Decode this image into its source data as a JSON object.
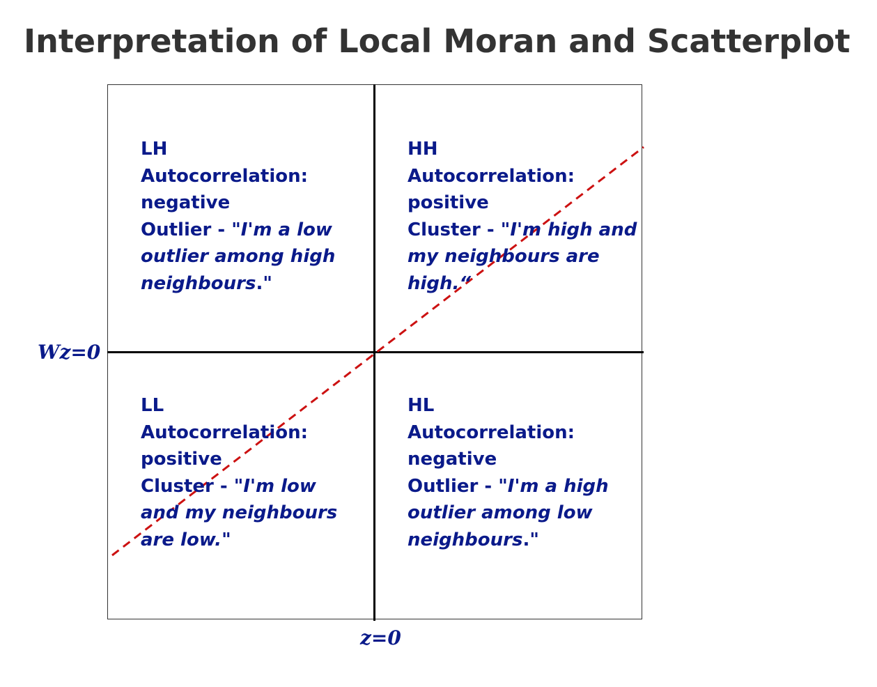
{
  "title": "Interpretation of Local Moran and Scatterplot",
  "axes": {
    "x_label": "z=0",
    "y_label": "Wz=0"
  },
  "quadrants": {
    "lh": {
      "code": "LH",
      "line1": "Autocorrelation:",
      "line2": "negative",
      "kind": "Outlier - \"",
      "q1": "I'm a low",
      "q2": "outlier among high",
      "q3": "neighbours",
      "end": "."
    },
    "hh": {
      "code": "HH",
      "line1": "Autocorrelation:",
      "line2": "positive",
      "kind": "Cluster - \"",
      "q1": "I'm high and",
      "q2": "my neighbours are",
      "q3": "high.“",
      "end": ""
    },
    "ll": {
      "code": "LL",
      "line1": "Autocorrelation:",
      "line2": "positive",
      "kind": "Cluster - \"",
      "q1": "I'm low",
      "q2": "and my neighbours",
      "q3": "are low.",
      "end": ""
    },
    "hl": {
      "code": "HL",
      "line1": "Autocorrelation:",
      "line2": "negative",
      "kind": "Outlier - \"",
      "q1": "I'm a high",
      "q2": "outlier among low",
      "q3": "neighbours",
      "end": "."
    }
  },
  "colors": {
    "text": "#0a1a8a",
    "regression_line": "#cc1111",
    "axes": "#000000"
  }
}
